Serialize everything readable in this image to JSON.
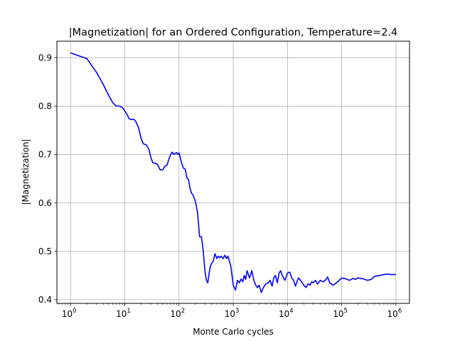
{
  "chart_data": {
    "type": "line",
    "title": "|Magnetization| for an Ordered Configuration, Temperature=2.4",
    "xlabel": "Monte Carlo cycles",
    "ylabel": "|Magnetization|",
    "xscale": "log",
    "xlim": [
      0.56,
      1780000.0
    ],
    "ylim": [
      0.3925,
      0.934
    ],
    "grid": true,
    "xticks": [
      {
        "value": 1,
        "base": "10",
        "exp": "0"
      },
      {
        "value": 10,
        "base": "10",
        "exp": "1"
      },
      {
        "value": 100,
        "base": "10",
        "exp": "2"
      },
      {
        "value": 1000,
        "base": "10",
        "exp": "3"
      },
      {
        "value": 10000,
        "base": "10",
        "exp": "4"
      },
      {
        "value": 100000,
        "base": "10",
        "exp": "5"
      },
      {
        "value": 1000000,
        "base": "10",
        "exp": "6"
      }
    ],
    "yticks": [
      {
        "value": 0.4,
        "label": "0.4"
      },
      {
        "value": 0.5,
        "label": "0.5"
      },
      {
        "value": 0.6,
        "label": "0.6"
      },
      {
        "value": 0.7,
        "label": "0.7"
      },
      {
        "value": 0.8,
        "label": "0.8"
      },
      {
        "value": 0.9,
        "label": "0.9"
      }
    ],
    "series": [
      {
        "color": "#0000ff",
        "x": [
          1,
          2,
          3,
          4,
          5,
          6,
          7,
          8,
          9,
          10,
          11,
          12,
          13,
          14,
          15,
          16,
          18,
          20,
          22,
          25,
          28,
          30,
          33,
          36,
          40,
          45,
          50,
          55,
          60,
          65,
          70,
          75,
          80,
          85,
          90,
          95,
          100,
          105,
          110,
          120,
          130,
          140,
          150,
          160,
          170,
          180,
          190,
          200,
          220,
          240,
          260,
          280,
          300,
          320,
          340,
          360,
          380,
          400,
          430,
          460,
          500,
          530,
          560,
          600,
          650,
          700,
          750,
          800,
          850,
          900,
          950,
          1000,
          1100,
          1200,
          1300,
          1400,
          1500,
          1600,
          1700,
          1800,
          2000,
          2200,
          2400,
          2600,
          2800,
          3000,
          3300,
          3600,
          4000,
          4400,
          4800,
          5200,
          5600,
          6000,
          6500,
          7000,
          7500,
          8000,
          9000,
          10000,
          11000,
          12000,
          13000,
          14000,
          15000,
          16000,
          18000,
          20000,
          22000,
          24000,
          26000,
          28000,
          30000,
          33000,
          36000,
          40000,
          45000,
          50000,
          55000,
          60000,
          70000,
          80000,
          90000,
          100000,
          120000,
          140000,
          160000,
          180000,
          200000,
          250000,
          300000,
          350000,
          400000,
          500000,
          600000,
          700000,
          800000,
          1000000
        ],
        "y": [
          0.91,
          0.898,
          0.87,
          0.845,
          0.823,
          0.807,
          0.8,
          0.8,
          0.797,
          0.79,
          0.783,
          0.774,
          0.772,
          0.773,
          0.772,
          0.768,
          0.755,
          0.733,
          0.722,
          0.72,
          0.71,
          0.695,
          0.683,
          0.682,
          0.68,
          0.668,
          0.668,
          0.676,
          0.678,
          0.69,
          0.7,
          0.705,
          0.7,
          0.702,
          0.704,
          0.7,
          0.703,
          0.695,
          0.685,
          0.672,
          0.67,
          0.652,
          0.648,
          0.63,
          0.62,
          0.617,
          0.61,
          0.604,
          0.58,
          0.53,
          0.53,
          0.5,
          0.46,
          0.44,
          0.435,
          0.455,
          0.47,
          0.475,
          0.48,
          0.495,
          0.485,
          0.49,
          0.487,
          0.49,
          0.485,
          0.492,
          0.485,
          0.49,
          0.48,
          0.47,
          0.45,
          0.43,
          0.42,
          0.44,
          0.435,
          0.443,
          0.437,
          0.45,
          0.442,
          0.46,
          0.445,
          0.46,
          0.44,
          0.43,
          0.425,
          0.43,
          0.415,
          0.425,
          0.433,
          0.435,
          0.44,
          0.428,
          0.445,
          0.45,
          0.435,
          0.455,
          0.46,
          0.45,
          0.44,
          0.455,
          0.457,
          0.445,
          0.44,
          0.428,
          0.437,
          0.445,
          0.438,
          0.43,
          0.425,
          0.433,
          0.43,
          0.437,
          0.435,
          0.44,
          0.432,
          0.44,
          0.437,
          0.44,
          0.447,
          0.435,
          0.43,
          0.435,
          0.44,
          0.445,
          0.443,
          0.44,
          0.444,
          0.442,
          0.445,
          0.443,
          0.44,
          0.442,
          0.448,
          0.45,
          0.452,
          0.453,
          0.452,
          0.452
        ]
      }
    ]
  }
}
